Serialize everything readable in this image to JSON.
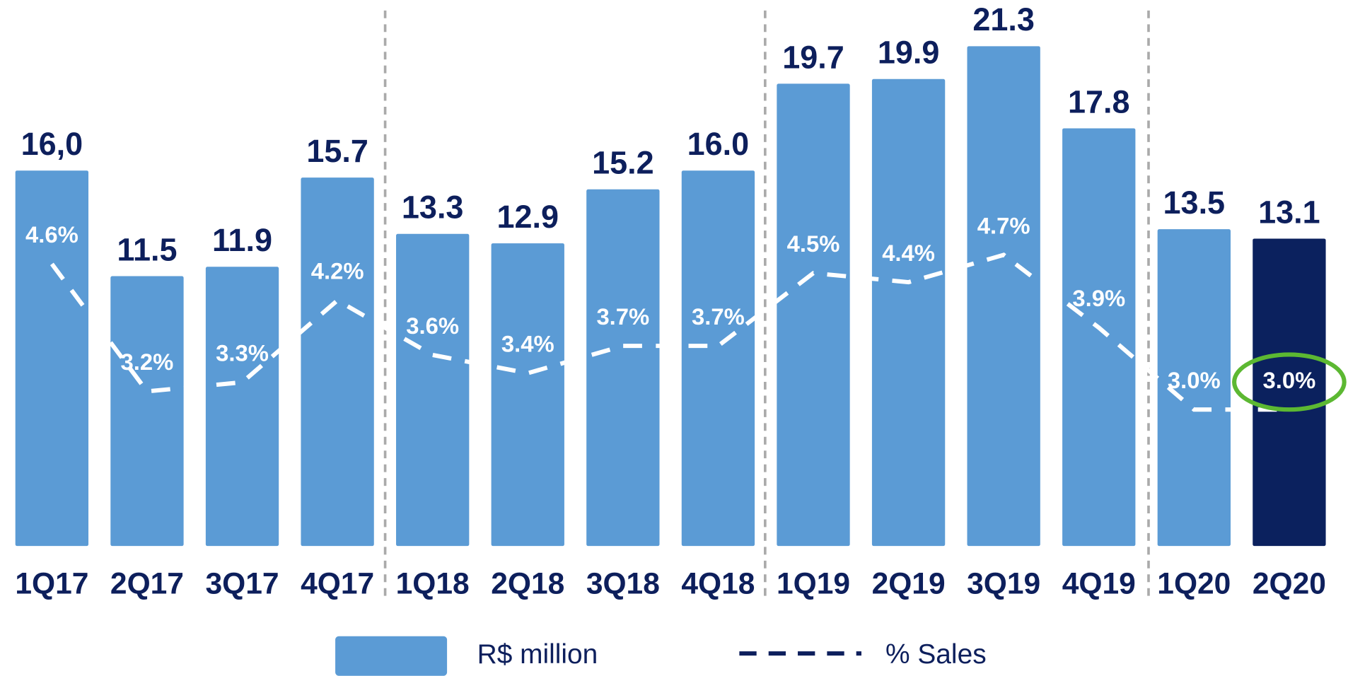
{
  "chart_data": {
    "type": "bar",
    "categories": [
      "1Q17",
      "2Q17",
      "3Q17",
      "4Q17",
      "1Q18",
      "2Q18",
      "3Q18",
      "4Q18",
      "1Q19",
      "2Q19",
      "3Q19",
      "4Q19",
      "1Q20",
      "2Q20"
    ],
    "series": [
      {
        "name": "R$ million",
        "type": "bar",
        "colors": [
          "#5b9bd5",
          "#5b9bd5",
          "#5b9bd5",
          "#5b9bd5",
          "#5b9bd5",
          "#5b9bd5",
          "#5b9bd5",
          "#5b9bd5",
          "#5b9bd5",
          "#5b9bd5",
          "#5b9bd5",
          "#5b9bd5",
          "#5b9bd5",
          "#0b215e"
        ],
        "values": [
          16.0,
          11.5,
          11.9,
          15.7,
          13.3,
          12.9,
          15.2,
          16.0,
          19.7,
          19.9,
          21.3,
          17.8,
          13.5,
          13.1
        ],
        "value_labels": [
          "16,0",
          "11.5",
          "11.9",
          "15.7",
          "13.3",
          "12.9",
          "15.2",
          "16.0",
          "19.7",
          "19.9",
          "21.3",
          "17.8",
          "13.5",
          "13.1"
        ]
      },
      {
        "name": "% Sales",
        "type": "line",
        "axis": "y2",
        "color": "#ffffff",
        "legend_color": "#0d1f5c",
        "dashed": true,
        "values": [
          4.6,
          3.2,
          3.3,
          4.2,
          3.6,
          3.4,
          3.7,
          3.7,
          4.5,
          4.4,
          4.7,
          3.9,
          3.0,
          3.0
        ],
        "value_labels": [
          "4.6%",
          "3.2%",
          "3.3%",
          "4.2%",
          "3.6%",
          "3.4%",
          "3.7%",
          "3.7%",
          "4.5%",
          "4.4%",
          "4.7%",
          "3.9%",
          "3.0%",
          "3.0%"
        ]
      }
    ],
    "ylim": [
      0,
      23.26
    ],
    "y2lim": [
      1.5,
      7.5
    ],
    "highlight": {
      "series": 1,
      "index": 13,
      "color": "#5cb832"
    },
    "legend": "bottom"
  }
}
